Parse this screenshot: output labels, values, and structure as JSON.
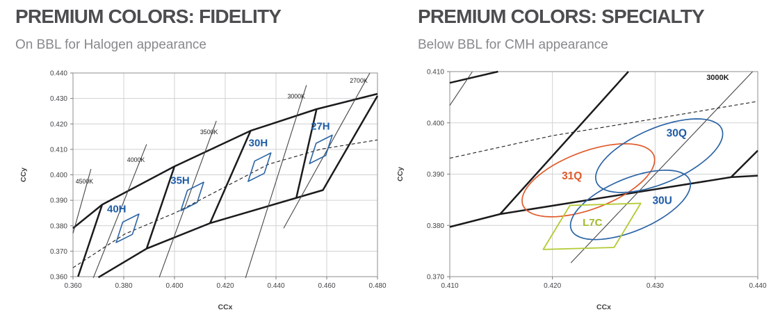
{
  "panels": [
    {
      "title": "PREMIUM COLORS: FIDELITY",
      "subtitle": "On BBL for Halogen appearance"
    },
    {
      "title": "PREMIUM COLORS: SPECIALTY",
      "subtitle": "Below BBL for CMH appearance"
    }
  ],
  "colors": {
    "title": "#4c4d4f",
    "subtitle": "#87888b",
    "grid": "#d0d1d3",
    "frame": "#97989a",
    "tick": "#77787a",
    "tick_label": "#414245",
    "axis_title": "#3f4042",
    "thick_line": "#1b1b1d",
    "thin_line": "#454547",
    "dashed_line": "#232325",
    "blue": "#2b64a5",
    "blue_text": "#1e5ca6",
    "orange": "#e05a2a",
    "green": "#b3ca33",
    "green_text": "#a3b82b",
    "black_text": "#1b1b1d"
  },
  "chart_data": [
    {
      "type": "line",
      "title": "PREMIUM COLORS: FIDELITY",
      "subtitle": "On BBL for Halogen appearance",
      "xlabel": "CCx",
      "ylabel": "CCy",
      "xlim": [
        0.36,
        0.48
      ],
      "ylim": [
        0.36,
        0.44
      ],
      "xticks": [
        0.36,
        0.38,
        0.4,
        0.42,
        0.44,
        0.46,
        0.48
      ],
      "yticks": [
        0.36,
        0.37,
        0.38,
        0.39,
        0.4,
        0.41,
        0.42,
        0.43,
        0.44
      ],
      "grid": true,
      "legend": "none",
      "thick_lines": [
        {
          "name": "band-upper-boundary",
          "points": [
            [
              0.36,
              0.379
            ],
            [
              0.3715,
              0.3883
            ],
            [
              0.4,
              0.4033
            ],
            [
              0.43,
              0.4173
            ],
            [
              0.456,
              0.4258
            ],
            [
              0.48,
              0.4318
            ]
          ]
        },
        {
          "name": "band-lower-boundary",
          "points": [
            [
              0.37,
              0.3597
            ],
            [
              0.389,
              0.371
            ],
            [
              0.414,
              0.381
            ],
            [
              0.4585,
              0.394
            ],
            [
              0.48,
              0.431
            ]
          ]
        },
        {
          "name": "bin-divider-1",
          "points": [
            [
              0.362,
              0.36
            ],
            [
              0.3715,
              0.3883
            ]
          ]
        },
        {
          "name": "bin-divider-2",
          "points": [
            [
              0.389,
              0.371
            ],
            [
              0.4,
              0.4033
            ]
          ]
        },
        {
          "name": "bin-divider-3",
          "points": [
            [
              0.414,
              0.381
            ],
            [
              0.43,
              0.4173
            ]
          ]
        },
        {
          "name": "bin-divider-4",
          "points": [
            [
              0.448,
              0.3909
            ],
            [
              0.456,
              0.4258
            ]
          ]
        }
      ],
      "thin_lines": [
        {
          "label": "4500K",
          "points": [
            [
              0.36,
              0.377
            ],
            [
              0.3671,
              0.4023
            ]
          ],
          "label_pos": [
            0.3645,
            0.3966
          ]
        },
        {
          "label": "4000K",
          "points": [
            [
              0.368,
              0.3595
            ],
            [
              0.389,
              0.412
            ]
          ],
          "label_pos": [
            0.3848,
            0.4051
          ]
        },
        {
          "label": "3500K",
          "points": [
            [
              0.394,
              0.3597
            ],
            [
              0.4165,
              0.4212
            ]
          ],
          "label_pos": [
            0.4136,
            0.416
          ]
        },
        {
          "label": "3000K",
          "points": [
            [
              0.428,
              0.3595
            ],
            [
              0.452,
              0.4352
            ]
          ],
          "label_pos": [
            0.448,
            0.43
          ]
        },
        {
          "label": "2700K",
          "points": [
            [
              0.443,
              0.379
            ],
            [
              0.477,
              0.44
            ]
          ],
          "label_pos": [
            0.4726,
            0.4362
          ]
        }
      ],
      "dashed_lines": [
        {
          "name": "black-body-locus",
          "points": [
            [
              0.36,
              0.3635
            ],
            [
              0.3805,
              0.3768
            ],
            [
              0.4006,
              0.3852
            ],
            [
              0.4369,
              0.4041
            ],
            [
              0.4578,
              0.4101
            ],
            [
              0.48,
              0.4137
            ]
          ]
        }
      ],
      "bins": [
        {
          "label": "40H",
          "center": [
            0.3815,
            0.379
          ],
          "e1": [
            0.0032,
            0.0016
          ],
          "e2": [
            0.0013,
            0.004
          ],
          "label_pos": [
            0.3772,
            0.3852
          ]
        },
        {
          "label": "35H",
          "center": [
            0.407,
            0.3915
          ],
          "e1": [
            0.0032,
            0.0016
          ],
          "e2": [
            0.0013,
            0.004
          ],
          "label_pos": [
            0.4022,
            0.3965
          ]
        },
        {
          "label": "30H",
          "center": [
            0.4335,
            0.403
          ],
          "e1": [
            0.0032,
            0.0016
          ],
          "e2": [
            0.0013,
            0.004
          ],
          "label_pos": [
            0.433,
            0.4112
          ]
        },
        {
          "label": "27H",
          "center": [
            0.4577,
            0.41
          ],
          "e1": [
            0.0032,
            0.0016
          ],
          "e2": [
            0.0013,
            0.004
          ],
          "label_pos": [
            0.4575,
            0.4178
          ]
        }
      ],
      "ellipses": [],
      "polygons": []
    },
    {
      "type": "line",
      "title": "PREMIUM COLORS: SPECIALTY",
      "subtitle": "Below BBL for CMH appearance",
      "xlabel": "CCx",
      "ylabel": "CCy",
      "xlim": [
        0.41,
        0.44
      ],
      "ylim": [
        0.37,
        0.41
      ],
      "xticks": [
        0.41,
        0.42,
        0.43,
        0.44
      ],
      "yticks": [
        0.37,
        0.38,
        0.39,
        0.4,
        0.41
      ],
      "grid": true,
      "legend": "none",
      "thick_lines": [
        {
          "name": "band-upper-boundary",
          "points": [
            [
              0.41,
              0.4078
            ],
            [
              0.4147,
              0.41
            ]
          ]
        },
        {
          "name": "bin-divider",
          "points": [
            [
              0.4149,
              0.3822
            ],
            [
              0.4274,
              0.41
            ]
          ]
        },
        {
          "name": "band-lower-boundary",
          "points": [
            [
              0.41,
              0.3797
            ],
            [
              0.4149,
              0.3822
            ],
            [
              0.4374,
              0.3894
            ],
            [
              0.44,
              0.3897
            ]
          ]
        },
        {
          "name": "bin-divider-right",
          "points": [
            [
              0.4374,
              0.3894
            ],
            [
              0.44,
              0.3946
            ]
          ]
        }
      ],
      "thin_lines": [
        {
          "label": "",
          "points": [
            [
              0.41,
              0.4034
            ],
            [
              0.4122,
              0.41
            ]
          ],
          "label_pos": null
        },
        {
          "label": "3000K",
          "points": [
            [
              0.4218,
              0.3727
            ],
            [
              0.4395,
              0.41
            ]
          ],
          "label_pos": [
            0.4361,
            0.4084
          ]
        }
      ],
      "dashed_lines": [
        {
          "name": "black-body-locus",
          "points": [
            [
              0.41,
              0.3931
            ],
            [
              0.42,
              0.3975
            ],
            [
              0.43,
              0.4008
            ],
            [
              0.44,
              0.4042
            ]
          ]
        }
      ],
      "bins": [],
      "ellipses": [
        {
          "label": "31Q",
          "color": "orange",
          "center": [
            0.4235,
            0.3888
          ],
          "a": 0.0085,
          "b": 0.0045,
          "rot_deg": 50,
          "label_pos": [
            0.4219,
            0.389
          ]
        },
        {
          "label": "30Q",
          "color": "blue",
          "center": [
            0.4304,
            0.3936
          ],
          "a": 0.0085,
          "b": 0.0042,
          "rot_deg": 52,
          "label_pos": [
            0.4321,
            0.3973
          ]
        },
        {
          "label": "30U",
          "color": "blue",
          "center": [
            0.4276,
            0.384
          ],
          "a": 0.008,
          "b": 0.004,
          "rot_deg": 52,
          "label_pos": [
            0.4307,
            0.3842
          ]
        }
      ],
      "polygons": [
        {
          "label": "L7C",
          "color": "green",
          "points": [
            [
              0.4191,
              0.3753
            ],
            [
              0.4217,
              0.3839
            ],
            [
              0.4286,
              0.3843
            ],
            [
              0.426,
              0.3757
            ]
          ],
          "label_pos": [
            0.4239,
            0.3799
          ]
        }
      ]
    }
  ]
}
